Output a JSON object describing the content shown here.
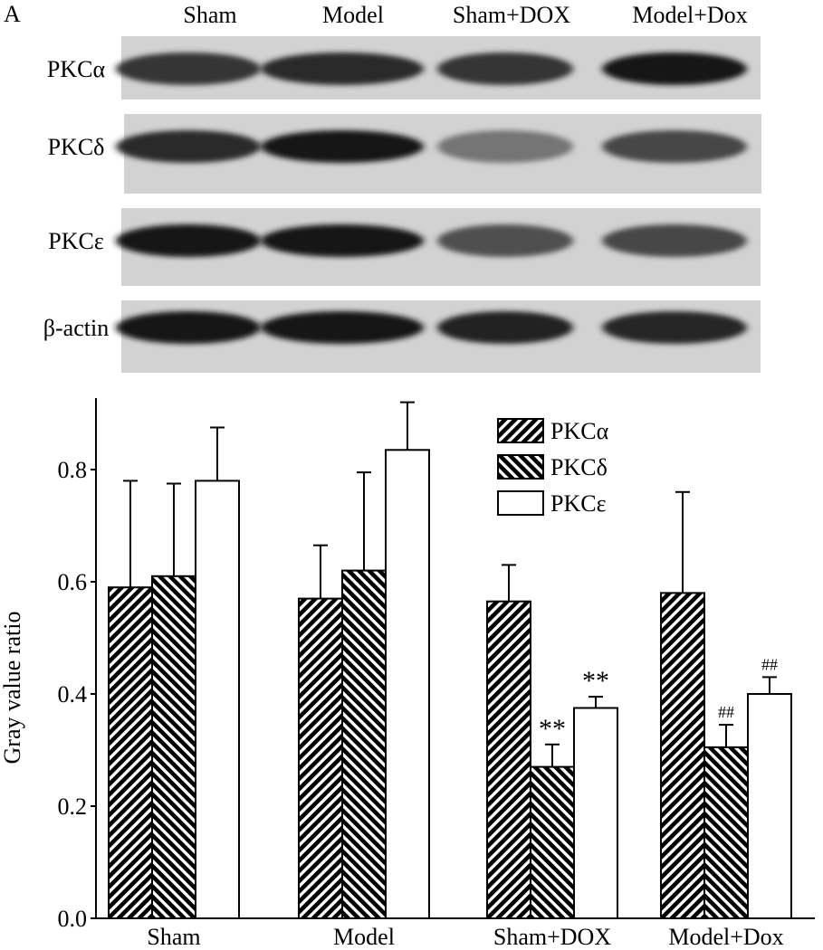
{
  "panel_label": "A",
  "blot": {
    "lanes": [
      "Sham",
      "Model",
      "Sham+DOX",
      "Model+Dox"
    ],
    "rows": [
      {
        "label": "PKCα",
        "intensity": [
          0.8,
          0.85,
          0.8,
          0.95
        ]
      },
      {
        "label": "PKCδ",
        "intensity": [
          0.85,
          0.95,
          0.45,
          0.7
        ]
      },
      {
        "label": "PKCε",
        "intensity": [
          0.98,
          0.95,
          0.65,
          0.7
        ]
      },
      {
        "label": "β-actin",
        "intensity": [
          0.95,
          0.95,
          0.9,
          0.88
        ]
      }
    ]
  },
  "chart_data": {
    "type": "bar",
    "categories": [
      "Sham",
      "Model",
      "Sham+DOX",
      "Model+Dox"
    ],
    "ylabel": "Gray value ratio",
    "xlabel": "",
    "ylim": [
      0,
      0.9
    ],
    "yticks": [
      "0.0",
      "0.2",
      "0.4",
      "0.6",
      "0.8"
    ],
    "legend_position": "top-right",
    "series": [
      {
        "name": "PKCα",
        "pattern": "hatch-forward",
        "values": [
          0.59,
          0.57,
          0.565,
          0.58
        ],
        "errors": [
          0.19,
          0.095,
          0.065,
          0.18
        ],
        "annotations": [
          "",
          "",
          "",
          ""
        ]
      },
      {
        "name": "PKCδ",
        "pattern": "hatch-backward",
        "values": [
          0.61,
          0.62,
          0.27,
          0.305
        ],
        "errors": [
          0.165,
          0.175,
          0.04,
          0.04
        ],
        "annotations": [
          "",
          "",
          "**",
          "##"
        ]
      },
      {
        "name": "PKCε",
        "pattern": "open",
        "values": [
          0.78,
          0.835,
          0.375,
          0.4
        ],
        "errors": [
          0.095,
          0.085,
          0.02,
          0.03
        ],
        "annotations": [
          "",
          "",
          "**",
          "##"
        ]
      }
    ]
  }
}
